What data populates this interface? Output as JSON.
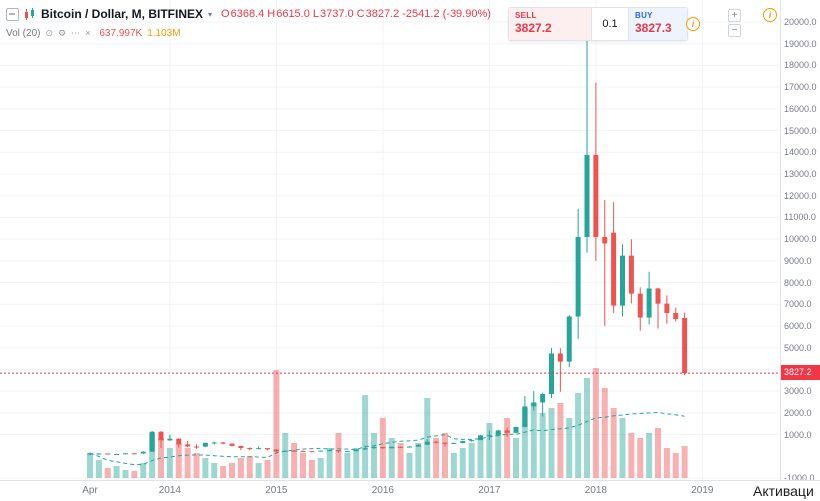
{
  "legend": {
    "title": "Bitcoin / Dollar, M, BITFINEX",
    "ohlc": {
      "items": [
        {
          "label": "O",
          "value": "6368.4"
        },
        {
          "label": "H",
          "value": "6615.0"
        },
        {
          "label": "L",
          "value": "3737.0"
        },
        {
          "label": "C",
          "value": "3827.2"
        }
      ],
      "change": "-2541.2 (-39.90%)"
    },
    "indicator": {
      "name": "Vol (20)",
      "value": "637.997K",
      "ma_value": "1.103M"
    }
  },
  "order_widget": {
    "sell_label": "SELL",
    "sell_price": "3827.2",
    "quantity": "0.1",
    "buy_label": "BUY",
    "buy_price": "3827.3"
  },
  "icons": {
    "caret": "▾",
    "eye": "⊙",
    "settings": "⚙",
    "more": "⋯",
    "close": "×",
    "info": "i",
    "plus": "+",
    "minus": "−"
  },
  "price_axis": {
    "labels": [
      "20000.0",
      "19000.0",
      "18000.0",
      "17000.0",
      "16000.0",
      "15000.0",
      "14000.0",
      "13000.0",
      "12000.0",
      "11000.0",
      "10000.0",
      "9000.0",
      "8000.0",
      "7000.0",
      "6000.0",
      "5000.0",
      "4000.0",
      "3000.0",
      "2000.0",
      "1000.0",
      "-1000.0"
    ],
    "last_price_tag": "3827.2"
  },
  "time_axis": {
    "labels": [
      {
        "text": "Apr",
        "month": 0
      },
      {
        "text": "2014",
        "month": 9
      },
      {
        "text": "2015",
        "month": 21
      },
      {
        "text": "2016",
        "month": 33
      },
      {
        "text": "2017",
        "month": 45
      },
      {
        "text": "2018",
        "month": 57
      },
      {
        "text": "2019",
        "month": 69
      }
    ]
  },
  "watermark": "Активаци",
  "colors": {
    "up": "#26a69a",
    "down": "#ef5350",
    "up_volume": "rgba(38,166,154,0.45)",
    "down_volume": "rgba(239,83,80,0.45)",
    "accent_red": "#f23645",
    "accent_blue": "#2962ff",
    "axis_text": "#787b86",
    "grid": "#f0f3fa",
    "ma_line": "#26a69a"
  },
  "chart_data": {
    "type": "candlestick",
    "title": "Bitcoin / Dollar, M, BITFINEX",
    "price_axis_range": [
      -1000,
      20000
    ],
    "last_price": 3827.2,
    "volume_ma_period": 20,
    "volume_unit": "thousands",
    "columns": [
      "month",
      "open",
      "high",
      "low",
      "close",
      "volume_k"
    ],
    "candles": [
      [
        "2013-04",
        93,
        166,
        50,
        128,
        500
      ],
      [
        "2013-05",
        128,
        140,
        79,
        129,
        360
      ],
      [
        "2013-06",
        129,
        134,
        88,
        97,
        200
      ],
      [
        "2013-07",
        97,
        112,
        63,
        106,
        240
      ],
      [
        "2013-08",
        106,
        140,
        92,
        138,
        160
      ],
      [
        "2013-09",
        138,
        147,
        109,
        133,
        140
      ],
      [
        "2013-10",
        133,
        230,
        109,
        211,
        300
      ],
      [
        "2013-11",
        211,
        1163,
        200,
        1130,
        900
      ],
      [
        "2013-12",
        1130,
        1160,
        380,
        732,
        800
      ],
      [
        "2014-01",
        732,
        1000,
        710,
        810,
        600
      ],
      [
        "2014-02",
        810,
        830,
        400,
        550,
        700
      ],
      [
        "2014-03",
        550,
        700,
        420,
        450,
        600
      ],
      [
        "2014-04",
        450,
        550,
        340,
        445,
        500
      ],
      [
        "2014-05",
        445,
        630,
        420,
        620,
        400
      ],
      [
        "2014-06",
        620,
        680,
        540,
        635,
        300
      ],
      [
        "2014-07",
        635,
        655,
        560,
        580,
        240
      ],
      [
        "2014-08",
        580,
        600,
        450,
        475,
        300
      ],
      [
        "2014-09",
        475,
        480,
        280,
        380,
        400
      ],
      [
        "2014-10",
        380,
        410,
        275,
        337,
        440
      ],
      [
        "2014-11",
        337,
        460,
        320,
        375,
        300
      ],
      [
        "2014-12",
        375,
        384,
        280,
        318,
        360
      ],
      [
        "2015-01",
        318,
        320,
        150,
        217,
        2160
      ],
      [
        "2015-02",
        217,
        270,
        210,
        253,
        900
      ],
      [
        "2015-03",
        253,
        300,
        236,
        244,
        700
      ],
      [
        "2015-04",
        244,
        260,
        210,
        235,
        500
      ],
      [
        "2015-05",
        235,
        248,
        225,
        230,
        360
      ],
      [
        "2015-06",
        230,
        268,
        217,
        263,
        400
      ],
      [
        "2015-07",
        263,
        318,
        250,
        283,
        600
      ],
      [
        "2015-08",
        283,
        285,
        162,
        228,
        900
      ],
      [
        "2015-09",
        228,
        246,
        220,
        236,
        500
      ],
      [
        "2015-10",
        236,
        335,
        235,
        314,
        600
      ],
      [
        "2015-11",
        314,
        502,
        295,
        377,
        1660
      ],
      [
        "2015-12",
        377,
        470,
        340,
        430,
        900
      ],
      [
        "2016-01",
        430,
        435,
        350,
        368,
        1200
      ],
      [
        "2016-02",
        368,
        447,
        365,
        437,
        800
      ],
      [
        "2016-03",
        437,
        440,
        380,
        416,
        700
      ],
      [
        "2016-04",
        416,
        470,
        410,
        448,
        500
      ],
      [
        "2016-05",
        448,
        550,
        440,
        531,
        700
      ],
      [
        "2016-06",
        531,
        780,
        515,
        673,
        1600
      ],
      [
        "2016-07",
        673,
        700,
        590,
        624,
        800
      ],
      [
        "2016-08",
        624,
        640,
        465,
        575,
        900
      ],
      [
        "2016-09",
        575,
        630,
        565,
        610,
        500
      ],
      [
        "2016-10",
        610,
        720,
        600,
        700,
        600
      ],
      [
        "2016-11",
        700,
        755,
        670,
        745,
        700
      ],
      [
        "2016-12",
        745,
        980,
        740,
        963,
        800
      ],
      [
        "2017-01",
        963,
        1180,
        750,
        970,
        1100
      ],
      [
        "2017-02",
        970,
        1220,
        920,
        1190,
        900
      ],
      [
        "2017-03",
        1190,
        1330,
        890,
        1080,
        1200
      ],
      [
        "2017-04",
        1080,
        1350,
        1070,
        1350,
        800
      ],
      [
        "2017-05",
        1350,
        2780,
        1340,
        2300,
        1400
      ],
      [
        "2017-06",
        2300,
        3000,
        2100,
        2480,
        1500
      ],
      [
        "2017-07",
        2480,
        2930,
        1830,
        2870,
        1300
      ],
      [
        "2017-08",
        2870,
        4980,
        2680,
        4735,
        1400
      ],
      [
        "2017-09",
        4735,
        4980,
        2970,
        4360,
        1500
      ],
      [
        "2017-10",
        4360,
        6500,
        4100,
        6440,
        1200
      ],
      [
        "2017-11",
        6440,
        11400,
        5400,
        10100,
        1700
      ],
      [
        "2017-12",
        10100,
        19891,
        9380,
        13880,
        2000
      ],
      [
        "2018-01",
        13880,
        17200,
        9000,
        10100,
        2200
      ],
      [
        "2018-02",
        10100,
        11800,
        6000,
        9800,
        1800
      ],
      [
        "2018-03",
        10300,
        11700,
        6600,
        6940,
        1400
      ],
      [
        "2018-04",
        6940,
        9760,
        6430,
        9240,
        1200
      ],
      [
        "2018-05",
        9240,
        9990,
        7040,
        7490,
        900
      ],
      [
        "2018-06",
        7490,
        7780,
        5780,
        6390,
        800
      ],
      [
        "2018-07",
        6390,
        8500,
        6070,
        7730,
        900
      ],
      [
        "2018-08",
        7730,
        7760,
        5880,
        7030,
        1000
      ],
      [
        "2018-09",
        7030,
        7410,
        6100,
        6600,
        600
      ],
      [
        "2018-10",
        6600,
        6850,
        6200,
        6320,
        500
      ],
      [
        "2018-11",
        6368.4,
        6615.0,
        3737.0,
        3827.2,
        637.997
      ]
    ]
  }
}
